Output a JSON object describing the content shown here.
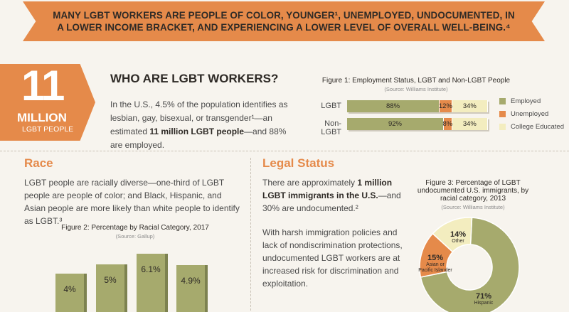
{
  "banner": {
    "text": "MANY LGBT WORKERS ARE PEOPLE OF COLOR, YOUNGER¹, UNEMPLOYED, UNDOCUMENTED, IN A LOWER INCOME BRACKET, AND EXPERIENCING A LOWER LEVEL OF OVERALL WELL-BEING.⁴"
  },
  "badge": {
    "number": "11",
    "million": "MILLION",
    "label": "LGBT PEOPLE"
  },
  "who": {
    "heading": "WHO ARE LGBT WORKERS?",
    "text1": "In the U.S., 4.5% of the population identifies as lesbian, gay, bisexual, or transgender¹—an estimated ",
    "bold": "11 million LGBT people",
    "text2": "—and 88% are employed."
  },
  "race": {
    "heading": "Race",
    "text": "LGBT people are racially diverse—one-third of LGBT people are people of color; and Black, Hispanic, and Asian people are more likely than white people to identify as LGBT.³"
  },
  "legal": {
    "heading": "Legal Status",
    "text1": "There are approximately ",
    "bold": "1 million LGBT immigrants in the U.S.",
    "text2": "—and 30% are undocumented.²",
    "para2": "With harsh immigration policies and lack of nondiscrimination protections, undocumented LGBT workers are at increased risk for discrimination and exploitation."
  },
  "colors": {
    "olive": "#a6aa6d",
    "orange": "#e58a4a",
    "cream": "#f3edbf"
  },
  "chart_data": [
    {
      "type": "bar",
      "orientation": "horizontal-stacked",
      "title": "Figure 1: Employment Status, LGBT and Non-LGBT People",
      "source": "(Source: Williams Institute)",
      "categories": [
        "LGBT",
        "Non-LGBT"
      ],
      "series": [
        {
          "name": "Employed",
          "color": "#a6aa6d",
          "values": [
            88,
            92
          ],
          "labels": [
            "88%",
            "92%"
          ]
        },
        {
          "name": "Unemployed",
          "color": "#e58a4a",
          "values": [
            12,
            8
          ],
          "labels": [
            "12%",
            "8%"
          ]
        },
        {
          "name": "College Educated",
          "color": "#f3edbf",
          "values": [
            34,
            34
          ],
          "labels": [
            "34%",
            "34%"
          ]
        }
      ]
    },
    {
      "type": "bar",
      "title": "Figure 2: Percentage by Racial Category, 2017",
      "source": "(Source: Gallup)",
      "values": [
        4,
        5,
        6.1,
        4.9
      ],
      "labels": [
        "4%",
        "5%",
        "6.1%",
        "4.9%"
      ]
    },
    {
      "type": "pie",
      "style": "donut",
      "title": "Figure 3: Percentage of LGBT undocumented U.S. immigrants, by racial category, 2013",
      "source": "(Source: Williams Institute)",
      "slices": [
        {
          "name": "Hispanic",
          "value": 71,
          "label": "71%",
          "color": "#a6aa6d"
        },
        {
          "name": "Asian or Pacific Islander",
          "value": 15,
          "label": "15%",
          "color": "#e58a4a"
        },
        {
          "name": "Other",
          "value": 14,
          "label": "14%",
          "color": "#f3edbf"
        }
      ]
    }
  ]
}
